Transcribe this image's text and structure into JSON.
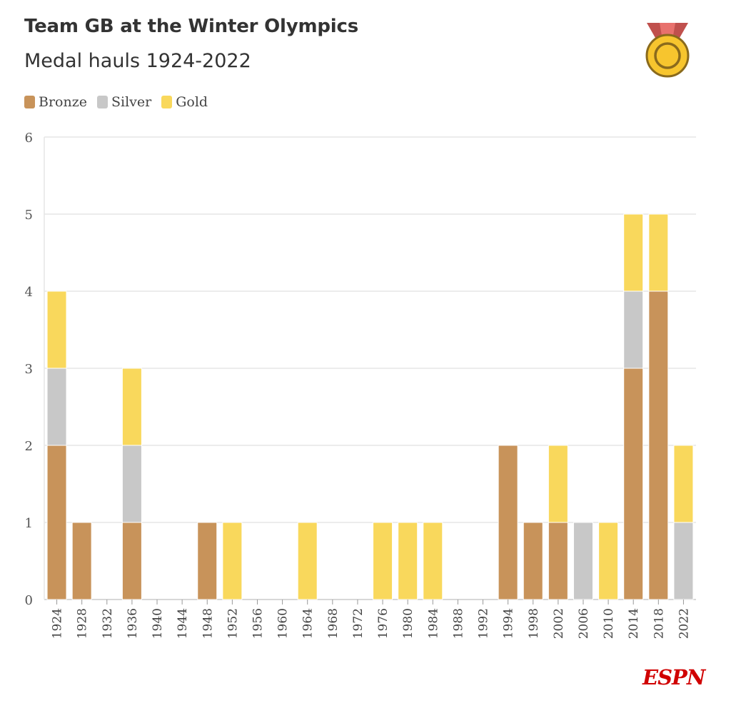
{
  "header": {
    "title": "Team GB at the Winter Olympics",
    "subtitle": "Medal hauls 1924-2022"
  },
  "legend": {
    "items": [
      {
        "label": "Bronze",
        "color": "#c8935a"
      },
      {
        "label": "Silver",
        "color": "#c8c8c8"
      },
      {
        "label": "Gold",
        "color": "#f9d85c"
      }
    ]
  },
  "logo": {
    "text": "ESPN",
    "color": "#d00000"
  },
  "medal_icon": "gold-medal-icon",
  "chart_data": {
    "type": "bar",
    "stacked": true,
    "title": "Team GB at the Winter Olympics",
    "subtitle": "Medal hauls 1924-2022",
    "xlabel": "",
    "ylabel": "",
    "ylim": [
      0,
      6
    ],
    "yticks": [
      0,
      1,
      2,
      3,
      4,
      5,
      6
    ],
    "grid": true,
    "legend_position": "top-left",
    "categories": [
      "1924",
      "1928",
      "1932",
      "1936",
      "1940",
      "1944",
      "1948",
      "1952",
      "1956",
      "1960",
      "1964",
      "1968",
      "1972",
      "1976",
      "1980",
      "1984",
      "1988",
      "1992",
      "1994",
      "1998",
      "2002",
      "2006",
      "2010",
      "2014",
      "2018",
      "2022"
    ],
    "series": [
      {
        "name": "Bronze",
        "color": "#c8935a",
        "values": [
          2,
          1,
          0,
          1,
          0,
          0,
          1,
          0,
          0,
          0,
          0,
          0,
          0,
          0,
          0,
          0,
          0,
          0,
          2,
          1,
          1,
          0,
          0,
          3,
          4,
          0
        ]
      },
      {
        "name": "Silver",
        "color": "#c8c8c8",
        "values": [
          1,
          0,
          0,
          1,
          0,
          0,
          0,
          0,
          0,
          0,
          0,
          0,
          0,
          0,
          0,
          0,
          0,
          0,
          0,
          0,
          0,
          1,
          0,
          1,
          0,
          1
        ]
      },
      {
        "name": "Gold",
        "color": "#f9d85c",
        "values": [
          1,
          0,
          0,
          1,
          0,
          0,
          0,
          1,
          0,
          0,
          1,
          0,
          0,
          1,
          1,
          1,
          0,
          0,
          0,
          0,
          1,
          0,
          1,
          1,
          1,
          1
        ]
      }
    ]
  }
}
